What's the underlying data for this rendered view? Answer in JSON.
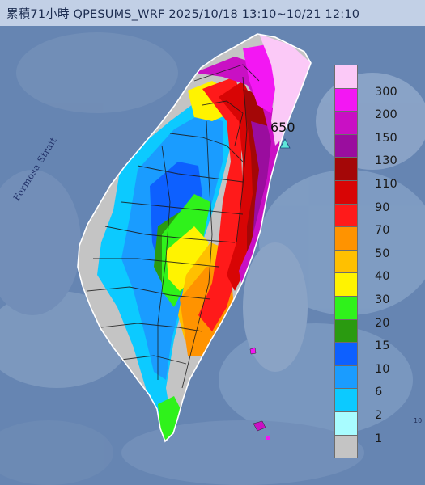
{
  "title": "累積71小時 QPESUMS_WRF 2025/10/18 13:10~10/21 12:10",
  "labels": {
    "strait": "Formosa Strait",
    "max_value": "650",
    "corner_mark": "10"
  },
  "legend": {
    "items": [
      {
        "label": "300",
        "color": "#fbc9f7"
      },
      {
        "label": "200",
        "color": "#f317f3"
      },
      {
        "label": "150",
        "color": "#c910c4"
      },
      {
        "label": "130",
        "color": "#9a0d9e"
      },
      {
        "label": "110",
        "color": "#a40707"
      },
      {
        "label": "90",
        "color": "#d80505"
      },
      {
        "label": "70",
        "color": "#ff1a1a"
      },
      {
        "label": "50",
        "color": "#ff9300"
      },
      {
        "label": "40",
        "color": "#ffc000"
      },
      {
        "label": "30",
        "color": "#fff300"
      },
      {
        "label": "20",
        "color": "#2ff21b"
      },
      {
        "label": "15",
        "color": "#2a9a10"
      },
      {
        "label": "10",
        "color": "#0d60ff"
      },
      {
        "label": "6",
        "color": "#1a9cff"
      },
      {
        "label": "2",
        "color": "#0ccaff"
      },
      {
        "label": "1",
        "color": "#a8fcff"
      },
      {
        "label": "",
        "color": "#c4c4c4"
      }
    ]
  },
  "colors": {
    "sea": "#6685b2",
    "land_dry": "#c4c4c4",
    "boundary": "#1a1a1a",
    "max_marker": "#5fe6d9"
  },
  "icons": {
    "max_marker": "triangle-up"
  }
}
